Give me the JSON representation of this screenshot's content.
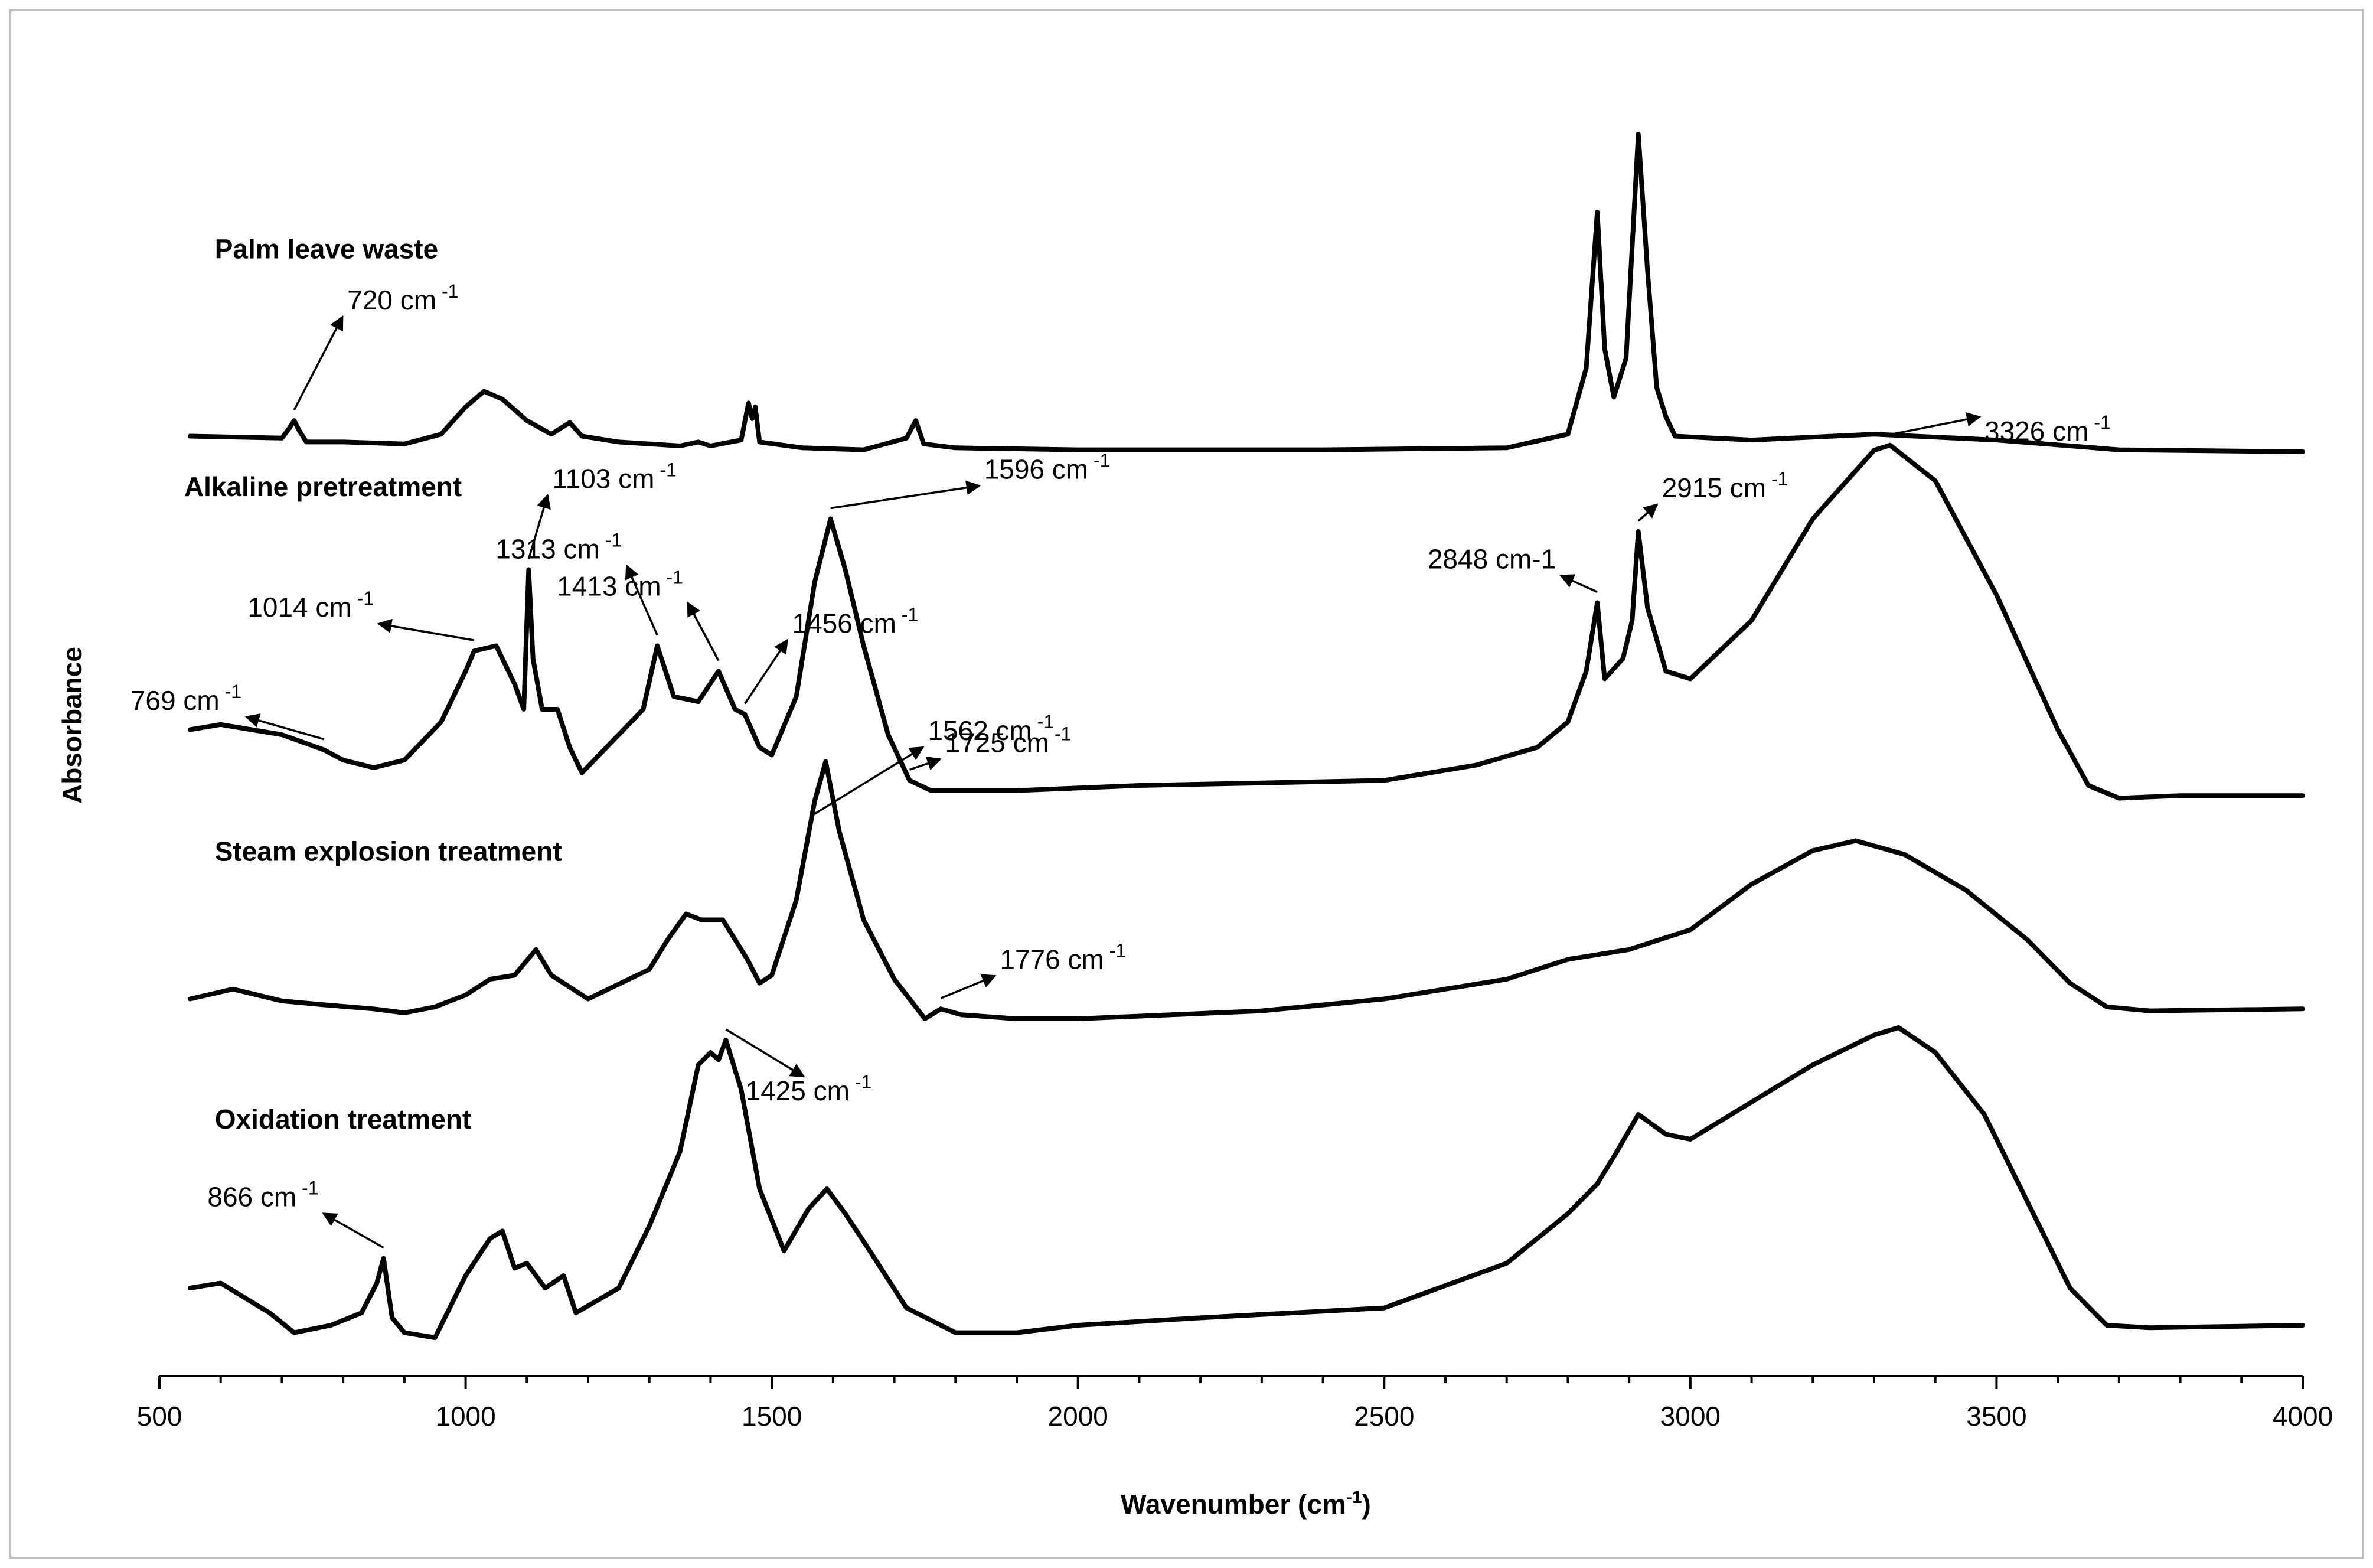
{
  "chart_data": {
    "type": "line",
    "title": "",
    "xlabel": "Wavenumber (cm-1)",
    "xlabel_base": "Wavenumber (cm",
    "xlabel_sup": "-1",
    "xlabel_tail": ")",
    "ylabel": "Absorbance",
    "xlim": [
      500,
      4000
    ],
    "xticks": [
      500,
      1000,
      1500,
      2000,
      2500,
      3000,
      3500,
      4000
    ],
    "grid": false,
    "legend": "none",
    "series": [
      {
        "name": "Palm leave waste",
        "points": [
          [
            550,
            0.05
          ],
          [
            700,
            0.04
          ],
          [
            712,
            0.09
          ],
          [
            720,
            0.13
          ],
          [
            728,
            0.08
          ],
          [
            740,
            0.02
          ],
          [
            800,
            0.02
          ],
          [
            900,
            0.01
          ],
          [
            960,
            0.06
          ],
          [
            1000,
            0.2
          ],
          [
            1030,
            0.28
          ],
          [
            1060,
            0.24
          ],
          [
            1100,
            0.13
          ],
          [
            1140,
            0.06
          ],
          [
            1160,
            0.1
          ],
          [
            1170,
            0.12
          ],
          [
            1190,
            0.05
          ],
          [
            1250,
            0.02
          ],
          [
            1350,
            0.0
          ],
          [
            1380,
            0.02
          ],
          [
            1400,
            0.0
          ],
          [
            1450,
            0.03
          ],
          [
            1462,
            0.22
          ],
          [
            1468,
            0.14
          ],
          [
            1473,
            0.2
          ],
          [
            1480,
            0.02
          ],
          [
            1550,
            -0.01
          ],
          [
            1650,
            -0.02
          ],
          [
            1720,
            0.04
          ],
          [
            1735,
            0.13
          ],
          [
            1748,
            0.01
          ],
          [
            1800,
            -0.01
          ],
          [
            2000,
            -0.02
          ],
          [
            2400,
            -0.02
          ],
          [
            2700,
            -0.01
          ],
          [
            2800,
            0.06
          ],
          [
            2830,
            0.4
          ],
          [
            2848,
            1.2
          ],
          [
            2860,
            0.5
          ],
          [
            2875,
            0.25
          ],
          [
            2895,
            0.45
          ],
          [
            2915,
            1.6
          ],
          [
            2930,
            0.9
          ],
          [
            2945,
            0.3
          ],
          [
            2960,
            0.15
          ],
          [
            2975,
            0.05
          ],
          [
            3100,
            0.03
          ],
          [
            3300,
            0.06
          ],
          [
            3500,
            0.03
          ],
          [
            3700,
            -0.02
          ],
          [
            4000,
            -0.03
          ]
        ]
      },
      {
        "name": "Alkaline pretreatment",
        "points": [
          [
            550,
            0.22
          ],
          [
            600,
            0.24
          ],
          [
            700,
            0.2
          ],
          [
            769,
            0.14
          ],
          [
            800,
            0.1
          ],
          [
            850,
            0.07
          ],
          [
            900,
            0.1
          ],
          [
            960,
            0.25
          ],
          [
            1000,
            0.45
          ],
          [
            1014,
            0.53
          ],
          [
            1050,
            0.55
          ],
          [
            1080,
            0.4
          ],
          [
            1095,
            0.3
          ],
          [
            1103,
            0.85
          ],
          [
            1110,
            0.5
          ],
          [
            1125,
            0.3
          ],
          [
            1150,
            0.3
          ],
          [
            1170,
            0.15
          ],
          [
            1190,
            0.05
          ],
          [
            1250,
            0.2
          ],
          [
            1290,
            0.3
          ],
          [
            1313,
            0.55
          ],
          [
            1340,
            0.35
          ],
          [
            1380,
            0.33
          ],
          [
            1413,
            0.45
          ],
          [
            1440,
            0.3
          ],
          [
            1456,
            0.28
          ],
          [
            1480,
            0.15
          ],
          [
            1500,
            0.12
          ],
          [
            1540,
            0.35
          ],
          [
            1570,
            0.8
          ],
          [
            1596,
            1.05
          ],
          [
            1620,
            0.85
          ],
          [
            1650,
            0.55
          ],
          [
            1690,
            0.2
          ],
          [
            1725,
            0.02
          ],
          [
            1760,
            -0.02
          ],
          [
            1900,
            -0.02
          ],
          [
            2100,
            0.0
          ],
          [
            2300,
            0.01
          ],
          [
            2500,
            0.02
          ],
          [
            2650,
            0.08
          ],
          [
            2750,
            0.15
          ],
          [
            2800,
            0.25
          ],
          [
            2830,
            0.45
          ],
          [
            2848,
            0.72
          ],
          [
            2860,
            0.42
          ],
          [
            2890,
            0.5
          ],
          [
            2905,
            0.65
          ],
          [
            2915,
            1.0
          ],
          [
            2930,
            0.7
          ],
          [
            2960,
            0.45
          ],
          [
            3000,
            0.42
          ],
          [
            3100,
            0.65
          ],
          [
            3200,
            1.05
          ],
          [
            3300,
            1.32
          ],
          [
            3326,
            1.34
          ],
          [
            3400,
            1.2
          ],
          [
            3500,
            0.75
          ],
          [
            3600,
            0.22
          ],
          [
            3650,
            0.0
          ],
          [
            3700,
            -0.05
          ],
          [
            3800,
            -0.04
          ],
          [
            4000,
            -0.04
          ]
        ]
      },
      {
        "name": "Steam explosion treatment",
        "points": [
          [
            550,
            0.1
          ],
          [
            620,
            0.15
          ],
          [
            700,
            0.09
          ],
          [
            770,
            0.07
          ],
          [
            850,
            0.05
          ],
          [
            900,
            0.03
          ],
          [
            950,
            0.06
          ],
          [
            1000,
            0.12
          ],
          [
            1040,
            0.2
          ],
          [
            1080,
            0.22
          ],
          [
            1115,
            0.35
          ],
          [
            1140,
            0.22
          ],
          [
            1200,
            0.1
          ],
          [
            1300,
            0.25
          ],
          [
            1330,
            0.4
          ],
          [
            1360,
            0.53
          ],
          [
            1385,
            0.5
          ],
          [
            1420,
            0.5
          ],
          [
            1460,
            0.3
          ],
          [
            1480,
            0.18
          ],
          [
            1500,
            0.22
          ],
          [
            1540,
            0.6
          ],
          [
            1570,
            1.1
          ],
          [
            1588,
            1.3
          ],
          [
            1610,
            0.95
          ],
          [
            1650,
            0.5
          ],
          [
            1700,
            0.2
          ],
          [
            1750,
            0.0
          ],
          [
            1776,
            0.05
          ],
          [
            1810,
            0.02
          ],
          [
            1900,
            0.0
          ],
          [
            2000,
            0.0
          ],
          [
            2300,
            0.04
          ],
          [
            2500,
            0.1
          ],
          [
            2700,
            0.2
          ],
          [
            2800,
            0.3
          ],
          [
            2900,
            0.35
          ],
          [
            2950,
            0.4
          ],
          [
            3000,
            0.45
          ],
          [
            3100,
            0.68
          ],
          [
            3200,
            0.85
          ],
          [
            3270,
            0.9
          ],
          [
            3350,
            0.83
          ],
          [
            3450,
            0.65
          ],
          [
            3550,
            0.4
          ],
          [
            3620,
            0.18
          ],
          [
            3680,
            0.06
          ],
          [
            3750,
            0.04
          ],
          [
            4000,
            0.05
          ]
        ]
      },
      {
        "name": "Oxidation treatment",
        "points": [
          [
            550,
            0.2
          ],
          [
            600,
            0.22
          ],
          [
            680,
            0.1
          ],
          [
            720,
            0.02
          ],
          [
            780,
            0.05
          ],
          [
            830,
            0.1
          ],
          [
            855,
            0.22
          ],
          [
            866,
            0.32
          ],
          [
            880,
            0.08
          ],
          [
            900,
            0.02
          ],
          [
            950,
            0.0
          ],
          [
            1000,
            0.25
          ],
          [
            1040,
            0.4
          ],
          [
            1060,
            0.43
          ],
          [
            1080,
            0.28
          ],
          [
            1100,
            0.3
          ],
          [
            1130,
            0.2
          ],
          [
            1160,
            0.25
          ],
          [
            1180,
            0.1
          ],
          [
            1250,
            0.2
          ],
          [
            1300,
            0.45
          ],
          [
            1350,
            0.75
          ],
          [
            1380,
            1.1
          ],
          [
            1400,
            1.15
          ],
          [
            1413,
            1.12
          ],
          [
            1425,
            1.2
          ],
          [
            1450,
            1.0
          ],
          [
            1480,
            0.6
          ],
          [
            1520,
            0.35
          ],
          [
            1560,
            0.52
          ],
          [
            1590,
            0.6
          ],
          [
            1620,
            0.5
          ],
          [
            1660,
            0.35
          ],
          [
            1720,
            0.12
          ],
          [
            1800,
            0.02
          ],
          [
            1900,
            0.02
          ],
          [
            2000,
            0.05
          ],
          [
            2200,
            0.08
          ],
          [
            2500,
            0.12
          ],
          [
            2700,
            0.3
          ],
          [
            2800,
            0.5
          ],
          [
            2848,
            0.62
          ],
          [
            2880,
            0.75
          ],
          [
            2915,
            0.9
          ],
          [
            2960,
            0.82
          ],
          [
            3000,
            0.8
          ],
          [
            3100,
            0.95
          ],
          [
            3200,
            1.1
          ],
          [
            3300,
            1.22
          ],
          [
            3340,
            1.25
          ],
          [
            3400,
            1.15
          ],
          [
            3480,
            0.9
          ],
          [
            3560,
            0.5
          ],
          [
            3620,
            0.2
          ],
          [
            3680,
            0.05
          ],
          [
            3750,
            0.04
          ],
          [
            4000,
            0.05
          ]
        ]
      }
    ],
    "series_labels": [
      {
        "text": "Palm leave waste",
        "x": 600,
        "series": 0,
        "dy": 0.78
      },
      {
        "text": "Alkaline pretreatment",
        "x": 550,
        "series": 1,
        "dy": 1.0
      },
      {
        "text": "Steam explosion treatment",
        "x": 600,
        "series": 2,
        "dy": 0.62
      },
      {
        "text": "Oxidation treatment",
        "x": 600,
        "series": 3,
        "dy": 0.7
      }
    ],
    "annotations": [
      {
        "base": "720 cm",
        "sup": "-1",
        "series": 0,
        "peak_x": 720
      },
      {
        "base": "1103 cm",
        "sup": "-1",
        "series": 1,
        "peak_x": 1103
      },
      {
        "base": "1456 cm",
        "sup": "-1",
        "series": 1,
        "peak_x": 1456
      },
      {
        "base": "1596 cm",
        "sup": "-1",
        "series": 1,
        "peak_x": 1596
      },
      {
        "base": "1413 cm",
        "sup": "-1",
        "series": 1,
        "peak_x": 1413
      },
      {
        "base": "1313 cm",
        "sup": "-1",
        "series": 1,
        "peak_x": 1313
      },
      {
        "base": "1014 cm",
        "sup": "-1",
        "series": 1,
        "peak_x": 1014
      },
      {
        "base": "769 cm",
        "sup": "-1",
        "series": 1,
        "peak_x": 769
      },
      {
        "base": "2848 cm-1",
        "sup": "",
        "series": 1,
        "peak_x": 2848
      },
      {
        "base": "2915 cm",
        "sup": "-1",
        "series": 1,
        "peak_x": 2915
      },
      {
        "base": "3326 cm",
        "sup": "-1",
        "series": 1,
        "peak_x": 3326
      },
      {
        "base": "1562 cm",
        "sup": "-1",
        "series": 2,
        "peak_x": 1562
      },
      {
        "base": "1725 cm",
        "sup": "-1",
        "series": 1,
        "peak_x": 1725
      },
      {
        "base": "1776 cm",
        "sup": "-1",
        "series": 2,
        "peak_x": 1776
      },
      {
        "base": "1425 cm",
        "sup": "-1",
        "series": 3,
        "peak_x": 1425
      },
      {
        "base": "866 cm",
        "sup": "-1",
        "series": 3,
        "peak_x": 866
      }
    ]
  }
}
